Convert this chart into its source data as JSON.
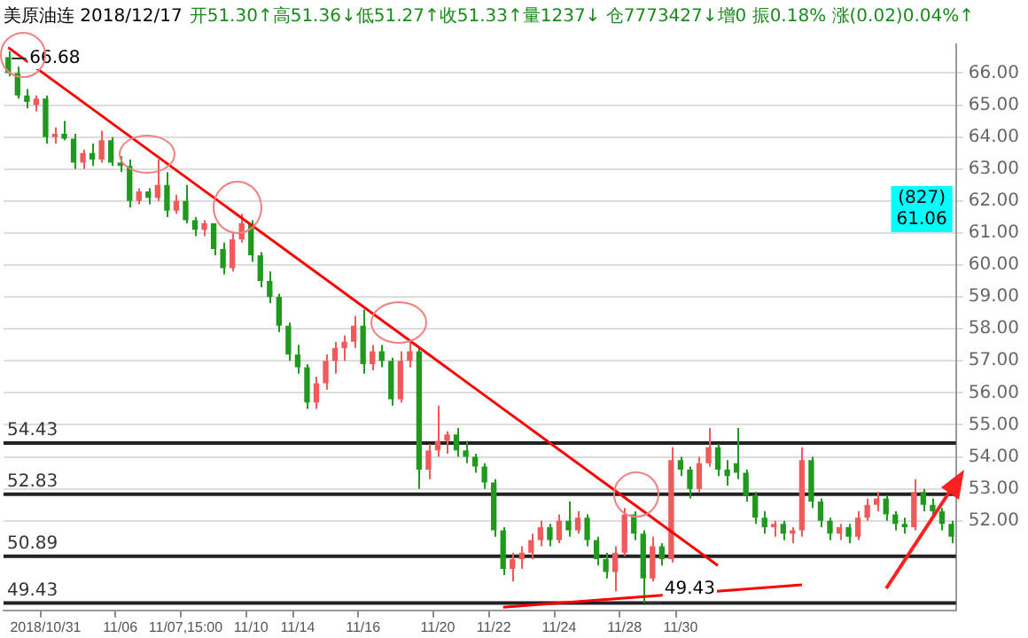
{
  "chart_data": {
    "type": "candlestick",
    "title": "美原油连 2018/12/17",
    "subtitle": "开51.30↑高51.36↓低51.27↑收51.33↑量1237↓ 仓7773427↓增0 振0.18% 涨(0.02)0.04%↑",
    "categories": [
      null,
      null,
      null,
      null,
      "2018/10/31",
      null,
      null,
      null,
      null,
      null,
      null,
      null,
      "11/06",
      null,
      null,
      null,
      null,
      null,
      null,
      "11/07,15:00",
      null,
      null,
      null,
      null,
      null,
      null,
      "11/10",
      null,
      null,
      null,
      null,
      "11/14",
      null,
      null,
      null,
      null,
      null,
      null,
      "11/16",
      null,
      null,
      null,
      null,
      null,
      null,
      null,
      "11/20",
      null,
      null,
      null,
      null,
      null,
      "11/22",
      null,
      null,
      null,
      null,
      null,
      null,
      "11/24",
      null,
      null,
      null,
      null,
      null,
      null,
      "11/28",
      null,
      null,
      null,
      null,
      null,
      "11/30",
      null,
      null,
      null,
      null,
      null,
      null,
      null,
      null,
      null,
      null,
      null,
      null,
      null,
      null,
      null,
      null,
      null,
      null,
      null,
      null,
      null,
      null,
      null,
      null,
      null,
      null,
      null,
      null,
      null
    ],
    "ohlc": [
      [
        66.5,
        66.68,
        65.9,
        66.0
      ],
      [
        66.0,
        66.2,
        65.2,
        65.3
      ],
      [
        65.3,
        65.5,
        64.9,
        65.1
      ],
      [
        65.0,
        65.3,
        64.8,
        65.2
      ],
      [
        65.2,
        65.3,
        63.8,
        64.0
      ],
      [
        64.0,
        64.3,
        63.8,
        64.1
      ],
      [
        64.1,
        64.5,
        63.9,
        63.95
      ],
      [
        63.95,
        64.1,
        63.0,
        63.2
      ],
      [
        63.2,
        63.6,
        63.0,
        63.5
      ],
      [
        63.5,
        63.8,
        63.1,
        63.3
      ],
      [
        63.3,
        64.2,
        63.2,
        63.9
      ],
      [
        63.9,
        64.0,
        63.1,
        63.2
      ],
      [
        63.2,
        63.4,
        62.9,
        63.1
      ],
      [
        63.1,
        63.3,
        61.8,
        62.0
      ],
      [
        62.0,
        62.4,
        61.9,
        62.3
      ],
      [
        62.3,
        62.4,
        61.9,
        62.1
      ],
      [
        62.1,
        63.3,
        62.0,
        62.5
      ],
      [
        62.5,
        62.9,
        61.5,
        61.7
      ],
      [
        61.7,
        62.2,
        61.6,
        62.0
      ],
      [
        62.0,
        62.5,
        61.3,
        61.4
      ],
      [
        61.4,
        61.5,
        60.9,
        61.1
      ],
      [
        61.1,
        61.4,
        60.9,
        61.3
      ],
      [
        61.3,
        61.3,
        60.3,
        60.5
      ],
      [
        60.5,
        60.7,
        59.7,
        59.9
      ],
      [
        59.9,
        61.0,
        59.8,
        60.8
      ],
      [
        60.8,
        61.6,
        60.7,
        61.3
      ],
      [
        61.3,
        61.4,
        60.1,
        60.3
      ],
      [
        60.3,
        60.4,
        59.3,
        59.5
      ],
      [
        59.5,
        59.8,
        58.8,
        59.0
      ],
      [
        59.0,
        59.1,
        57.9,
        58.1
      ],
      [
        58.1,
        58.2,
        57.0,
        57.2
      ],
      [
        57.2,
        57.5,
        56.6,
        56.8
      ],
      [
        56.8,
        56.9,
        55.5,
        55.7
      ],
      [
        55.7,
        56.5,
        55.5,
        56.3
      ],
      [
        56.3,
        57.2,
        56.1,
        57.0
      ],
      [
        57.0,
        57.6,
        56.6,
        57.4
      ],
      [
        57.4,
        57.8,
        57.0,
        57.6
      ],
      [
        57.6,
        58.4,
        57.4,
        58.1
      ],
      [
        58.1,
        58.6,
        56.6,
        56.9
      ],
      [
        56.9,
        57.5,
        56.7,
        57.3
      ],
      [
        57.3,
        57.5,
        56.8,
        57.0
      ],
      [
        57.0,
        57.1,
        55.6,
        55.8
      ],
      [
        55.8,
        57.3,
        55.7,
        57.0
      ],
      [
        57.0,
        57.6,
        56.8,
        57.3
      ],
      [
        57.3,
        57.4,
        53.0,
        53.6
      ],
      [
        53.6,
        54.4,
        53.3,
        54.2
      ],
      [
        54.2,
        55.6,
        54.0,
        54.5
      ],
      [
        54.5,
        54.8,
        54.1,
        54.7
      ],
      [
        54.7,
        54.9,
        54.0,
        54.2
      ],
      [
        54.2,
        54.5,
        53.8,
        54.0
      ],
      [
        54.0,
        54.1,
        53.5,
        53.7
      ],
      [
        53.7,
        53.8,
        53.0,
        53.2
      ],
      [
        53.2,
        53.3,
        51.5,
        51.7
      ],
      [
        51.7,
        51.8,
        50.3,
        50.5
      ],
      [
        50.5,
        51.0,
        50.1,
        50.8
      ],
      [
        50.8,
        51.2,
        50.5,
        51.0
      ],
      [
        51.0,
        51.6,
        50.8,
        51.4
      ],
      [
        51.4,
        52.0,
        51.2,
        51.8
      ],
      [
        51.8,
        51.9,
        51.2,
        51.4
      ],
      [
        51.4,
        52.2,
        51.3,
        52.0
      ],
      [
        52.0,
        52.6,
        51.5,
        51.7
      ],
      [
        51.7,
        52.3,
        51.6,
        52.1
      ],
      [
        52.1,
        52.2,
        51.2,
        51.4
      ],
      [
        51.4,
        51.5,
        50.6,
        50.8
      ],
      [
        50.8,
        51.0,
        50.2,
        50.4
      ],
      [
        50.4,
        51.2,
        49.8,
        51.0
      ],
      [
        51.0,
        52.4,
        50.9,
        52.2
      ],
      [
        52.2,
        52.3,
        51.4,
        51.6
      ],
      [
        51.6,
        51.7,
        49.43,
        50.2
      ],
      [
        50.2,
        51.5,
        50.1,
        51.2
      ],
      [
        51.2,
        51.3,
        50.6,
        50.8
      ],
      [
        50.8,
        54.3,
        50.7,
        53.9
      ],
      [
        53.9,
        54.0,
        53.4,
        53.6
      ],
      [
        53.6,
        53.7,
        52.7,
        53.0
      ],
      [
        53.0,
        54.0,
        52.9,
        53.8
      ],
      [
        53.8,
        54.9,
        53.7,
        54.3
      ],
      [
        54.3,
        54.4,
        53.4,
        53.6
      ],
      [
        53.6,
        53.9,
        53.1,
        53.4
      ],
      [
        53.8,
        54.9,
        53.3,
        53.5
      ],
      [
        53.5,
        53.6,
        52.6,
        52.8
      ],
      [
        52.8,
        52.9,
        51.9,
        52.1
      ],
      [
        52.1,
        52.3,
        51.6,
        51.8
      ],
      [
        51.8,
        52.0,
        51.5,
        51.9
      ],
      [
        51.9,
        52.0,
        51.4,
        51.6
      ],
      [
        51.6,
        51.8,
        51.3,
        51.7
      ],
      [
        51.7,
        54.3,
        51.5,
        53.9
      ],
      [
        53.9,
        54.0,
        52.4,
        52.6
      ],
      [
        52.6,
        52.7,
        51.8,
        52.0
      ],
      [
        52.0,
        52.1,
        51.4,
        51.6
      ],
      [
        51.6,
        51.9,
        51.4,
        51.8
      ],
      [
        51.8,
        51.9,
        51.3,
        51.5
      ],
      [
        51.5,
        52.3,
        51.4,
        52.1
      ],
      [
        52.1,
        52.7,
        52.0,
        52.5
      ],
      [
        52.5,
        52.9,
        52.3,
        52.7
      ],
      [
        52.7,
        52.8,
        52.0,
        52.2
      ],
      [
        52.2,
        52.3,
        51.7,
        51.9
      ],
      [
        51.9,
        52.1,
        51.6,
        51.8
      ],
      [
        51.8,
        53.3,
        51.7,
        52.9
      ],
      [
        52.9,
        53.0,
        52.3,
        52.5
      ],
      [
        52.5,
        52.7,
        52.1,
        52.3
      ],
      [
        52.3,
        52.4,
        51.7,
        51.9
      ],
      [
        51.9,
        52.0,
        51.3,
        51.5
      ]
    ],
    "series": [
      {
        "type": "line",
        "color": "#ff0000",
        "values": [
          66.8,
          null,
          null,
          null,
          null,
          null,
          null,
          null,
          null,
          null,
          null,
          null,
          null,
          null,
          null,
          null,
          null,
          null,
          null,
          null,
          null,
          null,
          null,
          null,
          null,
          null,
          null,
          null,
          null,
          null,
          null,
          null,
          null,
          null,
          null,
          null,
          null,
          null,
          null,
          null,
          null,
          null,
          null,
          null,
          null,
          null,
          null,
          null,
          null,
          null,
          null,
          null,
          null,
          null,
          null,
          null,
          null,
          null,
          null,
          null,
          null,
          null,
          null,
          null,
          null,
          null,
          null,
          null,
          null,
          null,
          null,
          null,
          null,
          null,
          null,
          null,
          50.6,
          null,
          null,
          null,
          null,
          null,
          null,
          null,
          null,
          null,
          null,
          null,
          null,
          null,
          null,
          null,
          null,
          null,
          null,
          null,
          null,
          null,
          null,
          null,
          null,
          null
        ]
      },
      {
        "type": "line",
        "color": "#ff0000",
        "values": [
          null,
          null,
          null,
          null,
          null,
          null,
          null,
          null,
          null,
          null,
          null,
          null,
          null,
          null,
          null,
          null,
          null,
          null,
          null,
          null,
          null,
          null,
          null,
          null,
          null,
          null,
          null,
          null,
          null,
          null,
          null,
          null,
          null,
          null,
          null,
          null,
          null,
          null,
          null,
          null,
          null,
          null,
          null,
          null,
          null,
          null,
          null,
          null,
          null,
          null,
          null,
          null,
          null,
          49.3,
          null,
          null,
          null,
          null,
          null,
          null,
          null,
          null,
          null,
          null,
          null,
          null,
          null,
          null,
          null,
          null,
          null,
          null,
          null,
          null,
          null,
          null,
          null,
          null,
          null,
          null,
          null,
          null,
          null,
          null,
          null,
          50.0,
          null,
          null,
          null,
          null,
          null,
          null,
          null,
          null,
          null,
          null,
          null,
          null,
          null,
          null,
          null,
          null
        ]
      }
    ],
    "ylim": [
      49.2,
      66.9
    ],
    "yticks": [
      {
        "value": 52,
        "label": "52.00"
      },
      {
        "value": 53,
        "label": "53.00"
      },
      {
        "value": 54,
        "label": "54.00"
      },
      {
        "value": 55,
        "label": "55.00"
      },
      {
        "value": 56,
        "label": "56.00"
      },
      {
        "value": 57,
        "label": "57.00"
      },
      {
        "value": 58,
        "label": "58.00"
      },
      {
        "value": 59,
        "label": "59.00"
      },
      {
        "value": 60,
        "label": "60.00"
      },
      {
        "value": 61,
        "label": "61.00"
      },
      {
        "value": 62,
        "label": "62.00"
      },
      {
        "value": 63,
        "label": "63.00"
      },
      {
        "value": 64,
        "label": "64.00"
      },
      {
        "value": 65,
        "label": "65.00"
      },
      {
        "value": 66,
        "label": "66.00"
      }
    ],
    "ref_lines": [
      {
        "axis": "y",
        "value": 54.43,
        "label": "54.43",
        "color": "#222222"
      },
      {
        "axis": "y",
        "value": 52.83,
        "label": "52.83",
        "color": "#222222"
      },
      {
        "axis": "y",
        "value": 50.89,
        "label": "50.89",
        "color": "#222222"
      },
      {
        "axis": "y",
        "value": 49.43,
        "label": "49.43",
        "color": "#222222"
      }
    ],
    "annotations": [
      "66.68",
      {
        "text": "49.43",
        "y": 49.43
      },
      "(827)",
      "61.06"
    ],
    "grid": "y",
    "legend": false,
    "marker": "none",
    "line_style": "solid"
  }
}
